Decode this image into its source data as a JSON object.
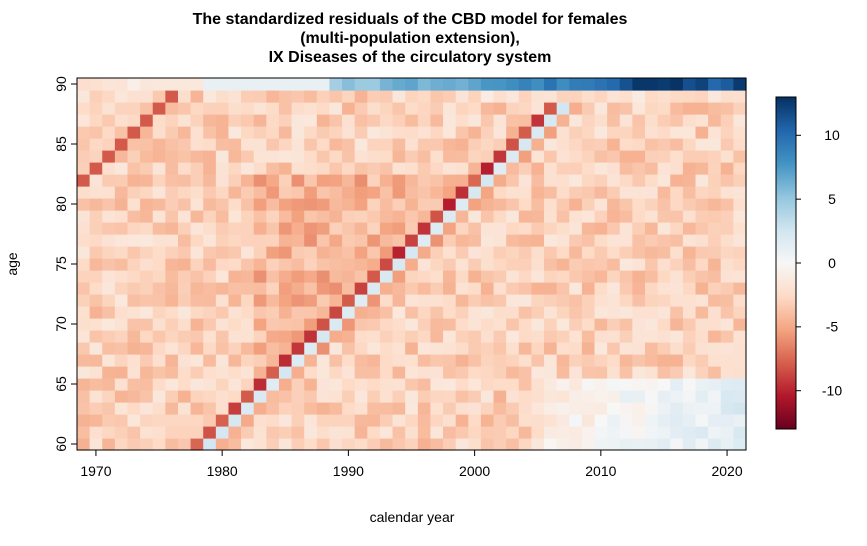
{
  "chart_data": {
    "type": "heatmap",
    "title": [
      "The standardized residuals of the CBD model for females",
      "(multi-population extension),",
      "IX Diseases of the circulatory system"
    ],
    "xlabel": "calendar year",
    "ylabel": "age",
    "x_range": [
      1969,
      2021
    ],
    "y_range": [
      60,
      90
    ],
    "x_ticks": [
      "1970",
      "1980",
      "1990",
      "2000",
      "2010",
      "2020"
    ],
    "y_ticks": [
      "60",
      "65",
      "70",
      "75",
      "80",
      "85",
      "90"
    ],
    "colorbar": {
      "range": [
        -13,
        13
      ],
      "ticks": [
        "10",
        "5",
        "0",
        "-5",
        "-10"
      ],
      "palette": [
        "#67001F",
        "#B2182B",
        "#D6604D",
        "#F4A582",
        "#FDDBC7",
        "#F7F7F7",
        "#D1E5F0",
        "#92C5DE",
        "#4393C3",
        "#2166AC",
        "#053061"
      ]
    },
    "description_of_values": {
      "background_residual": -3,
      "diagonal_bands": "cohort effects: adjacent dark red (about -10) and light blue (about +2) diagonal bands from 1979 age 60 to 2008 age 90",
      "age_90_row_after_1989": "positive residuals rising to about +13 around 2012-2020",
      "lower_right_region_after_2006_ages_60_65": "near zero to slightly positive"
    }
  }
}
